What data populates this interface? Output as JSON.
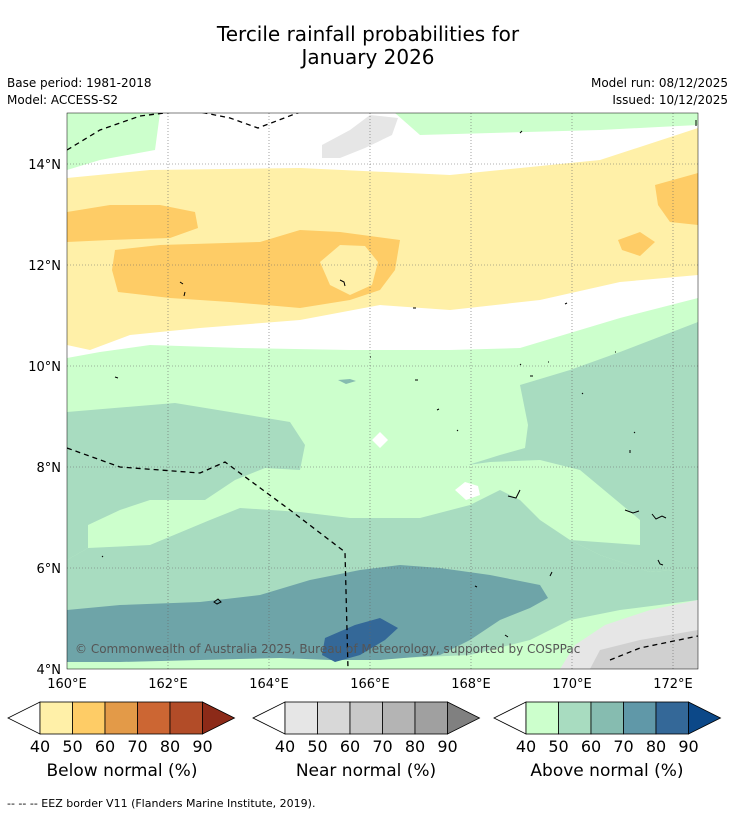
{
  "title": {
    "line1": "Tercile rainfall probabilities for",
    "line2": "January 2026"
  },
  "meta": {
    "base_period": "Base period: 1981-2018",
    "model": "Model: ACCESS-S2",
    "model_run": "Model run: 08/12/2025",
    "issued": "Issued: 10/12/2025"
  },
  "map": {
    "copyright": "© Commonwealth of Australia 2025, Bureau of Meteorology, supported by COSPPac",
    "lon_labels": [
      "160°E",
      "162°E",
      "164°E",
      "166°E",
      "168°E",
      "170°E",
      "172°E"
    ],
    "lat_labels": [
      "14°N",
      "12°N",
      "10°N",
      "8°N",
      "6°N",
      "4°N"
    ],
    "lon_range": [
      160,
      172.5
    ],
    "lat_range": [
      4,
      15
    ]
  },
  "legends": {
    "below": {
      "label": "Below normal (%)",
      "ticks": [
        "40",
        "50",
        "60",
        "70",
        "80",
        "90"
      ],
      "colors": [
        "#fff0a8",
        "#fecc66",
        "#e39a48",
        "#cc6633",
        "#b24c28",
        "#8c2a18"
      ]
    },
    "near": {
      "label": "Near normal (%)",
      "ticks": [
        "40",
        "50",
        "60",
        "70",
        "80",
        "90"
      ],
      "colors": [
        "#e6e6e6",
        "#d8d8d8",
        "#c8c8c8",
        "#b4b4b4",
        "#a0a0a0",
        "#808080"
      ]
    },
    "above": {
      "label": "Above normal (%)",
      "ticks": [
        "40",
        "50",
        "60",
        "70",
        "80",
        "90"
      ],
      "colors": [
        "#ccffcc",
        "#a8dcc0",
        "#86bcb0",
        "#6098a8",
        "#346898",
        "#0c4888"
      ]
    }
  },
  "footer": "--  --  -- EEZ border V11 (Flanders Marine Institute, 2019)."
}
